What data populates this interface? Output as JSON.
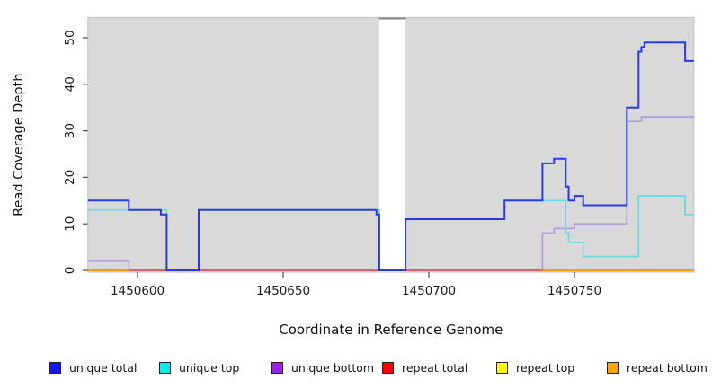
{
  "chart_data": {
    "type": "line",
    "subtype": "step",
    "title": "",
    "xlabel": "Coordinate in Reference Genome",
    "ylabel": "Read Coverage Depth",
    "xlim": [
      1450583,
      1450791
    ],
    "ylim": [
      0,
      54
    ],
    "x_ticks": [
      1450600,
      1450650,
      1450700,
      1450750
    ],
    "y_ticks": [
      0,
      10,
      20,
      30,
      40,
      50
    ],
    "grid": false,
    "plot_background": "#d9d9d9",
    "plot_border_color": "#c6c6c6",
    "masked_region": {
      "x_start": 1450683,
      "x_end": 1450692,
      "fill": "#ffffff",
      "top_edge_color": "#8e8e8e"
    },
    "legend_position": "bottom",
    "series": [
      {
        "name": "repeat top",
        "line_color": "#ffee00",
        "width": 1.5,
        "points": [
          [
            1450583,
            0
          ],
          [
            1450791,
            0
          ]
        ]
      },
      {
        "name": "unique bottom",
        "line_color": "#b49add",
        "width": 1.7,
        "points": [
          [
            1450583,
            2
          ],
          [
            1450597,
            0
          ],
          [
            1450739,
            8
          ],
          [
            1450743,
            9
          ],
          [
            1450750,
            10
          ],
          [
            1450768,
            32
          ],
          [
            1450773,
            33
          ],
          [
            1450791,
            33
          ]
        ]
      },
      {
        "name": "repeat total",
        "line_color": "#e04a55",
        "width": 1.5,
        "points": [
          [
            1450583,
            0
          ],
          [
            1450791,
            0
          ]
        ]
      },
      {
        "name": "repeat bottom",
        "line_color": "#ff9d00",
        "width": 2,
        "points": [
          [
            1450583,
            0
          ],
          [
            1450791,
            0
          ]
        ],
        "visible_segments": [
          [
            1450583,
            1450597
          ],
          [
            1450739,
            1450791
          ]
        ]
      },
      {
        "name": "unique top",
        "line_color": "#5fdce6",
        "width": 1.7,
        "points": [
          [
            1450583,
            13
          ],
          [
            1450610,
            0
          ],
          [
            1450621,
            13
          ],
          [
            1450683,
            0
          ],
          [
            1450692,
            11
          ],
          [
            1450726,
            15
          ],
          [
            1450747,
            8
          ],
          [
            1450748,
            6
          ],
          [
            1450753,
            3
          ],
          [
            1450772,
            16
          ],
          [
            1450788,
            12
          ],
          [
            1450791,
            12
          ]
        ]
      },
      {
        "name": "unique total",
        "line_color": "#2b3ae0",
        "width": 2,
        "points": [
          [
            1450583,
            15
          ],
          [
            1450597,
            13
          ],
          [
            1450608,
            12
          ],
          [
            1450610,
            0
          ],
          [
            1450621,
            13
          ],
          [
            1450682,
            12
          ],
          [
            1450683,
            0
          ],
          [
            1450692,
            11
          ],
          [
            1450726,
            15
          ],
          [
            1450739,
            23
          ],
          [
            1450743,
            24
          ],
          [
            1450747,
            18
          ],
          [
            1450748,
            15
          ],
          [
            1450750,
            16
          ],
          [
            1450753,
            14
          ],
          [
            1450768,
            35
          ],
          [
            1450772,
            47
          ],
          [
            1450773,
            48
          ],
          [
            1450774,
            49
          ],
          [
            1450788,
            45
          ],
          [
            1450791,
            45
          ]
        ]
      }
    ],
    "legend": [
      {
        "label": "unique total",
        "color": "#1414ff"
      },
      {
        "label": "unique top",
        "color": "#00eeee"
      },
      {
        "label": "unique bottom",
        "color": "#a020f0"
      },
      {
        "label": "repeat total",
        "color": "#ff0000"
      },
      {
        "label": "repeat top",
        "color": "#ffff00"
      },
      {
        "label": "repeat bottom",
        "color": "#ffa500"
      }
    ]
  }
}
